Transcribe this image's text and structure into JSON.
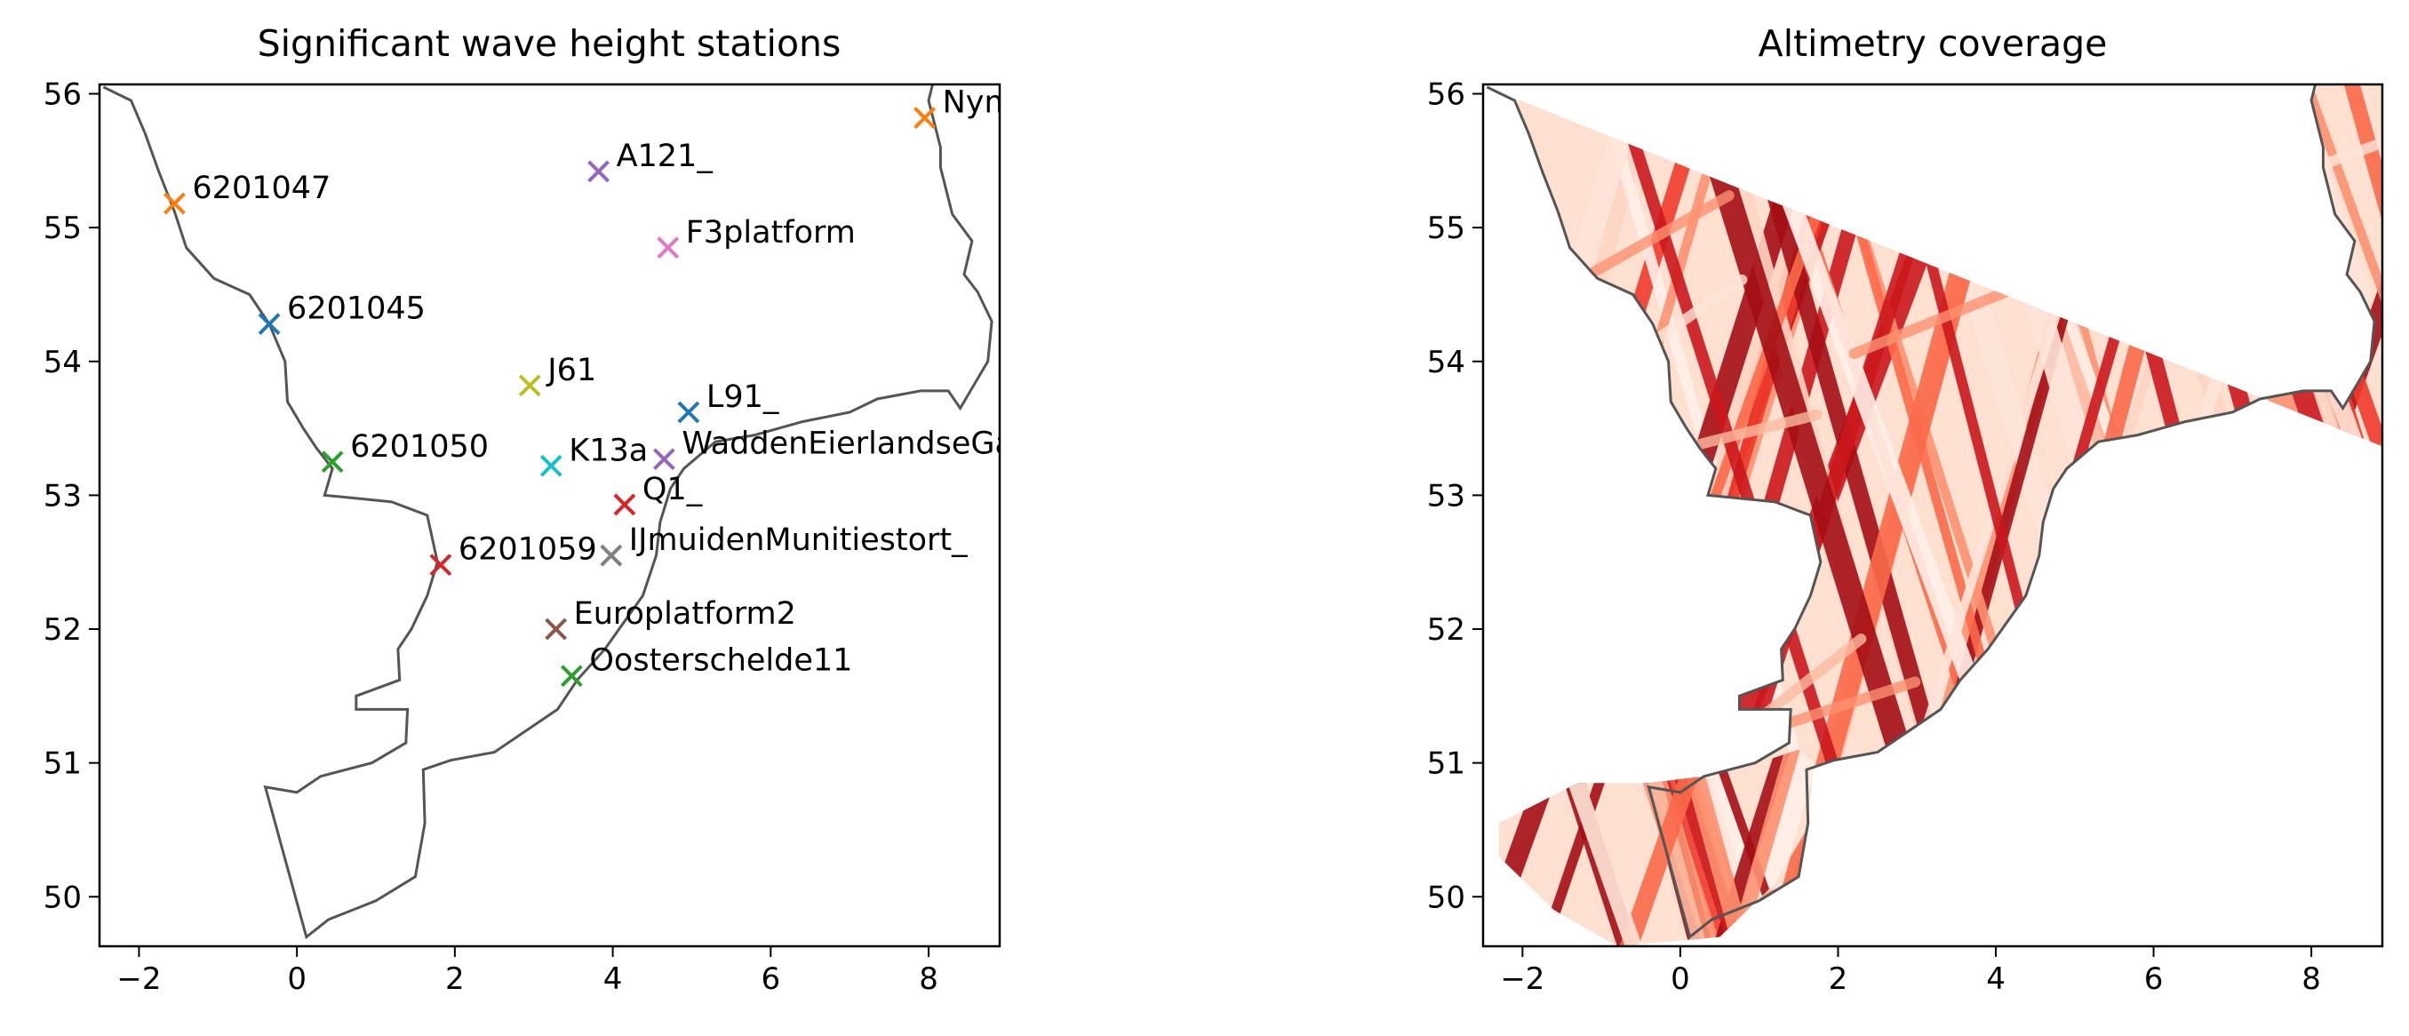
{
  "chart_data": [
    {
      "type": "scatter",
      "title": "Significant wave height stations",
      "xlabel": "",
      "ylabel": "",
      "xlim": [
        -2.5,
        8.9
      ],
      "ylim": [
        49.63,
        56.07
      ],
      "xticks": [
        "−2",
        "0",
        "2",
        "4",
        "6",
        "8"
      ],
      "yticks": [
        "50",
        "51",
        "52",
        "53",
        "54",
        "55",
        "56"
      ],
      "grid": false,
      "marker": "x",
      "stations": [
        {
          "name": "Nymindegab",
          "lon": 7.95,
          "lat": 55.82,
          "color": "#ff7f0e"
        },
        {
          "name": "A121_",
          "lon": 3.82,
          "lat": 55.42,
          "color": "#9467bd"
        },
        {
          "name": "6201047",
          "lon": -1.55,
          "lat": 55.18,
          "color": "#ff7f0e"
        },
        {
          "name": "F3platform",
          "lon": 4.7,
          "lat": 54.85,
          "color": "#e377c2"
        },
        {
          "name": "6201045",
          "lon": -0.35,
          "lat": 54.28,
          "color": "#1f77b4"
        },
        {
          "name": "J61",
          "lon": 2.95,
          "lat": 53.82,
          "color": "#bcbd22"
        },
        {
          "name": "L91_",
          "lon": 4.96,
          "lat": 53.62,
          "color": "#1f77b4"
        },
        {
          "name": "WaddenEierlandseGat",
          "lon": 4.65,
          "lat": 53.27,
          "color": "#9467bd"
        },
        {
          "name": "6201050",
          "lon": 0.45,
          "lat": 53.25,
          "color": "#2ca02c"
        },
        {
          "name": "K13a",
          "lon": 3.22,
          "lat": 53.22,
          "color": "#17becf"
        },
        {
          "name": "Q1_",
          "lon": 4.15,
          "lat": 52.93,
          "color": "#d62728"
        },
        {
          "name": "IJmuidenMunitiestort_",
          "lon": 3.98,
          "lat": 52.55,
          "color": "#7f7f7f"
        },
        {
          "name": "6201059",
          "lon": 1.82,
          "lat": 52.48,
          "color": "#d62728"
        },
        {
          "name": "Europlatform2",
          "lon": 3.28,
          "lat": 52.0,
          "color": "#8c564b"
        },
        {
          "name": "Oosterschelde11",
          "lon": 3.48,
          "lat": 51.65,
          "color": "#2ca02c"
        }
      ]
    },
    {
      "type": "heatmap",
      "title": "Altimetry coverage",
      "xlabel": "",
      "ylabel": "",
      "xlim": [
        -2.5,
        8.9
      ],
      "ylim": [
        49.63,
        56.07
      ],
      "xticks": [
        "−2",
        "0",
        "2",
        "4",
        "6",
        "8"
      ],
      "yticks": [
        "50",
        "51",
        "52",
        "53",
        "54",
        "55",
        "56"
      ],
      "grid": false,
      "colormap": "Reds",
      "description_colors": {
        "light": "#fee0d2",
        "mid": "#fb6a4a",
        "dark": "#a50f15"
      }
    }
  ]
}
